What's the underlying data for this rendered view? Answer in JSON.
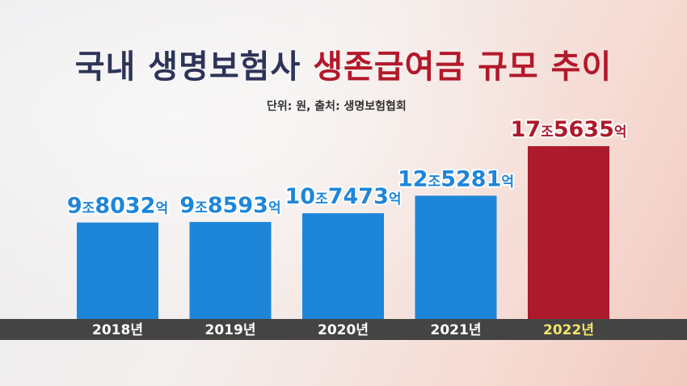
{
  "title": {
    "part1": "국내 생명보험사 ",
    "part2": "생존급여금 규모 추이"
  },
  "subtitle": "단위: 원, 출처: 생명보험협회",
  "colors": {
    "title_dark": "#2e3458",
    "title_accent": "#b3182a",
    "bar_normal": "#1e86d9",
    "bar_highlight": "#ad1a2b",
    "label_normal": "#1e86d9",
    "label_highlight": "#ad1a2b",
    "label_highlight_fill": "#fff7c8",
    "axis_band": "#444444",
    "year_normal": "#ffffff",
    "year_highlight": "#f3e36a"
  },
  "chart_data": {
    "type": "bar",
    "categories": [
      "2018년",
      "2019년",
      "2020년",
      "2021년",
      "2022년"
    ],
    "values": [
      98032,
      98593,
      107473,
      125281,
      175635
    ],
    "value_unit": "억 원",
    "labels": [
      {
        "major": "9",
        "unit1": "조",
        "minor": "8032",
        "unit2": "억"
      },
      {
        "major": "9",
        "unit1": "조",
        "minor": "8593",
        "unit2": "억"
      },
      {
        "major": "10",
        "unit1": "조",
        "minor": "7473",
        "unit2": "억"
      },
      {
        "major": "12",
        "unit1": "조",
        "minor": "5281",
        "unit2": "억"
      },
      {
        "major": "17",
        "unit1": "조",
        "minor": "5635",
        "unit2": "억"
      }
    ],
    "highlight_index": 4,
    "title": "국내 생명보험사 생존급여금 규모 추이",
    "xlabel": "",
    "ylabel": "",
    "grid": false,
    "legend": "none"
  }
}
